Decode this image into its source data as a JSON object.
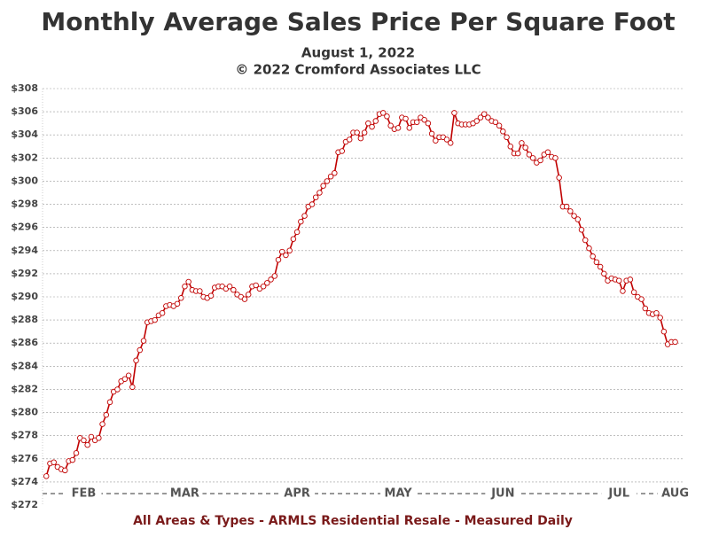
{
  "chart_data": {
    "type": "line",
    "title": "Monthly Average Sales Price Per Square Foot",
    "subtitle": "August 1, 2022",
    "copyright": "© 2022 Cromford Associates LLC",
    "footer": "All Areas & Types - ARMLS Residential Resale - Measured Daily",
    "color": "#c00000",
    "grid": true,
    "xlim": [
      -1,
      170
    ],
    "xticks": [
      {
        "value": 10,
        "label": "FEB"
      },
      {
        "value": 37,
        "label": "MAR"
      },
      {
        "value": 67,
        "label": "APR"
      },
      {
        "value": 94,
        "label": "MAY"
      },
      {
        "value": 122,
        "label": "JUN"
      },
      {
        "value": 153,
        "label": "JUL"
      },
      {
        "value": 168,
        "label": "AUG"
      }
    ],
    "ylim": [
      272,
      308
    ],
    "yticks": [
      {
        "value": 272,
        "label": "$272"
      },
      {
        "value": 274,
        "label": "$274"
      },
      {
        "value": 276,
        "label": "$276"
      },
      {
        "value": 278,
        "label": "$278"
      },
      {
        "value": 280,
        "label": "$280"
      },
      {
        "value": 282,
        "label": "$282"
      },
      {
        "value": 284,
        "label": "$284"
      },
      {
        "value": 286,
        "label": "$286"
      },
      {
        "value": 288,
        "label": "$288"
      },
      {
        "value": 290,
        "label": "$290"
      },
      {
        "value": 292,
        "label": "$292"
      },
      {
        "value": 294,
        "label": "$294"
      },
      {
        "value": 296,
        "label": "$296"
      },
      {
        "value": 298,
        "label": "$298"
      },
      {
        "value": 300,
        "label": "$300"
      },
      {
        "value": 302,
        "label": "$302"
      },
      {
        "value": 304,
        "label": "$304"
      },
      {
        "value": 306,
        "label": "$306"
      },
      {
        "value": 308,
        "label": "$308"
      }
    ],
    "values": [
      274.5,
      275.6,
      275.7,
      275.3,
      275.1,
      275.0,
      275.8,
      275.9,
      276.5,
      277.8,
      277.6,
      277.2,
      277.9,
      277.6,
      277.8,
      279.0,
      279.8,
      280.9,
      281.8,
      282.0,
      282.7,
      282.9,
      283.2,
      282.2,
      284.5,
      285.4,
      286.2,
      287.8,
      287.9,
      288.0,
      288.4,
      288.6,
      289.2,
      289.3,
      289.2,
      289.4,
      289.9,
      290.9,
      291.3,
      290.6,
      290.5,
      290.5,
      290.0,
      289.9,
      290.1,
      290.8,
      290.9,
      290.9,
      290.7,
      290.9,
      290.6,
      290.2,
      290.0,
      289.8,
      290.2,
      290.9,
      291.0,
      290.7,
      290.9,
      291.2,
      291.5,
      291.8,
      293.2,
      293.9,
      293.6,
      294.0,
      295.0,
      295.6,
      296.5,
      297.0,
      297.8,
      298.0,
      298.6,
      299.0,
      299.6,
      300.0,
      300.4,
      300.7,
      302.5,
      302.6,
      303.4,
      303.6,
      304.2,
      304.2,
      303.7,
      304.2,
      305.0,
      304.7,
      305.2,
      305.8,
      305.9,
      305.6,
      304.8,
      304.5,
      304.6,
      305.5,
      305.4,
      304.6,
      305.1,
      305.1,
      305.5,
      305.3,
      305.0,
      304.1,
      303.5,
      303.8,
      303.8,
      303.6,
      303.3,
      305.9,
      305.0,
      304.9,
      304.9,
      304.9,
      305.0,
      305.2,
      305.5,
      305.8,
      305.5,
      305.2,
      305.1,
      304.8,
      304.3,
      303.8,
      303.0,
      302.4,
      302.4,
      303.3,
      302.9,
      302.3,
      302.0,
      301.6,
      301.8,
      302.3,
      302.5,
      302.1,
      302.0,
      300.3,
      297.8,
      297.8,
      297.4,
      297.0,
      296.7,
      295.8,
      294.9,
      294.2,
      293.5,
      293.0,
      292.6,
      292.0,
      291.4,
      291.6,
      291.5,
      291.4,
      290.5,
      291.4,
      291.5,
      290.4,
      290.0,
      289.8,
      289.0,
      288.6,
      288.5,
      288.6,
      288.2,
      287.0,
      285.9,
      286.1,
      286.1
    ]
  }
}
